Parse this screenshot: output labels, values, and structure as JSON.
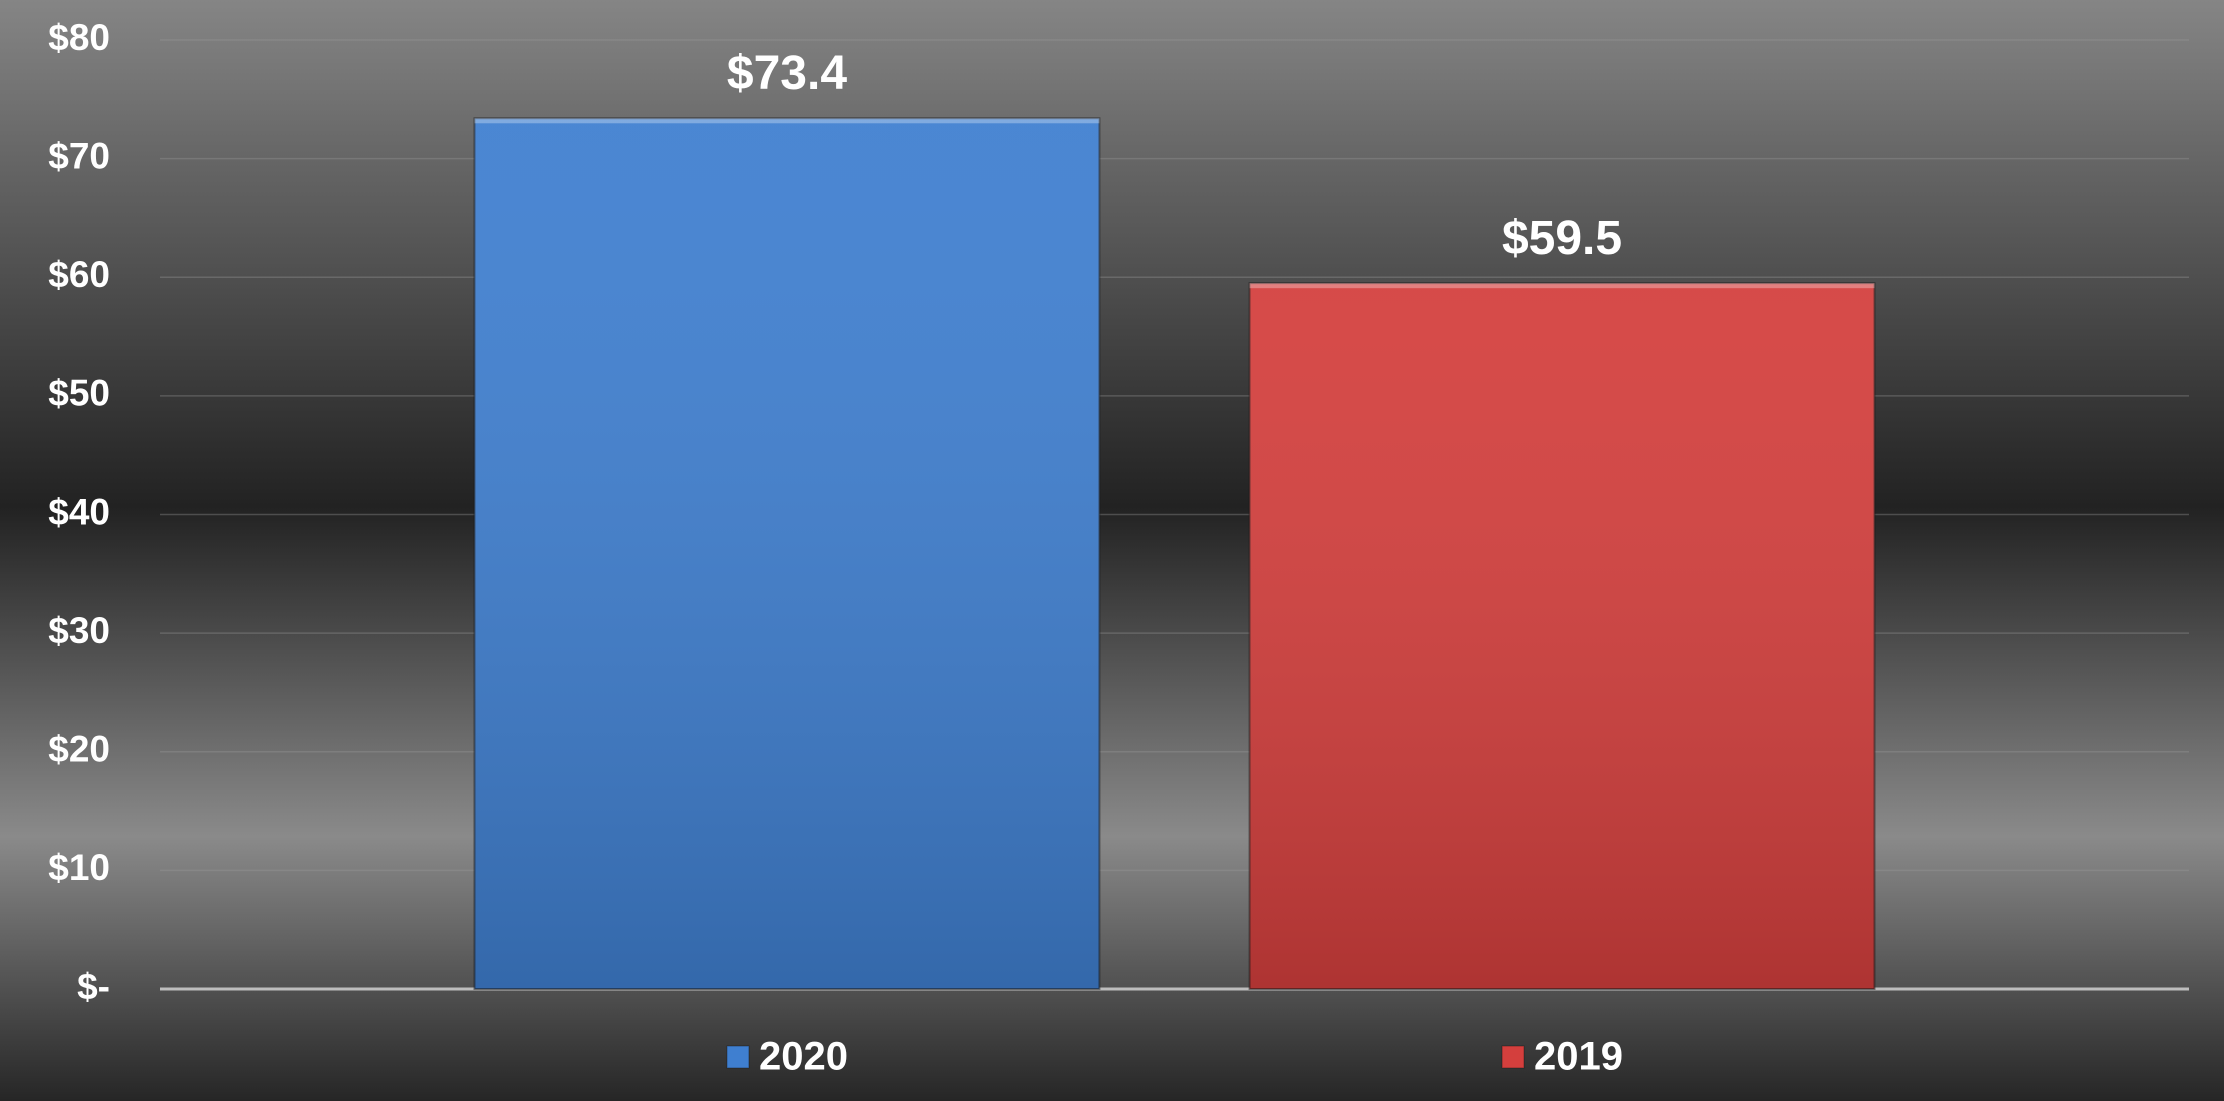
{
  "chart_data": {
    "type": "bar",
    "categories": [
      null
    ],
    "series": [
      {
        "name": "2020",
        "color": "#3f7fd0",
        "values": [
          73.4
        ],
        "value_labels": [
          "$73.4"
        ]
      },
      {
        "name": "2019",
        "color": "#d43f3d",
        "values": [
          59.5
        ],
        "value_labels": [
          "$59.5"
        ]
      }
    ],
    "ylim": [
      0,
      80
    ],
    "yticks": [
      {
        "value": 0,
        "label": "$-"
      },
      {
        "value": 10,
        "label": "$10"
      },
      {
        "value": 20,
        "label": "$20"
      },
      {
        "value": 30,
        "label": "$30"
      },
      {
        "value": 40,
        "label": "$40"
      },
      {
        "value": 50,
        "label": "$50"
      },
      {
        "value": 60,
        "label": "$60"
      },
      {
        "value": 70,
        "label": "$70"
      },
      {
        "value": 80,
        "label": "$80"
      }
    ],
    "grid": true,
    "legend": "bottom"
  }
}
